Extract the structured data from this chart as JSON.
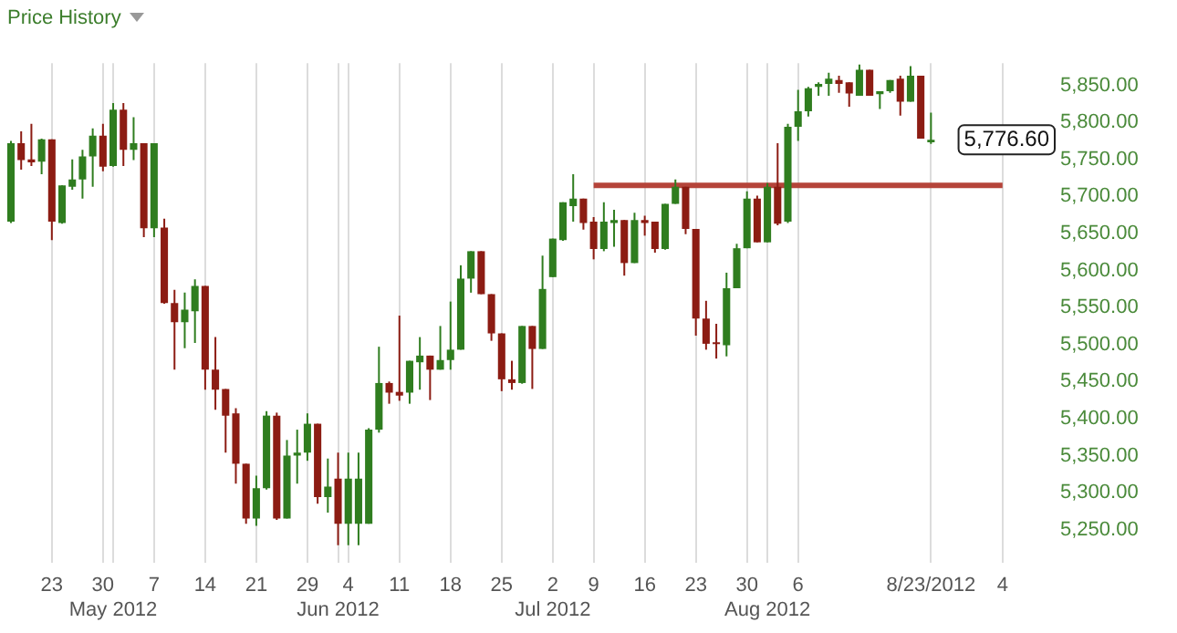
{
  "chart_data": {
    "type": "candlestick",
    "title": "Price History",
    "categories": [
      null,
      null,
      null,
      null,
      "23",
      null,
      null,
      null,
      null,
      "30",
      "\nMay 2012",
      null,
      null,
      null,
      "7",
      null,
      null,
      null,
      null,
      "14",
      null,
      null,
      null,
      null,
      "21",
      null,
      null,
      null,
      null,
      "29",
      null,
      null,
      "\nJun 2012",
      "4",
      null,
      null,
      null,
      null,
      "11",
      null,
      null,
      null,
      null,
      "18",
      null,
      null,
      null,
      null,
      "25",
      null,
      null,
      null,
      null,
      "2\nJul 2012",
      null,
      null,
      null,
      "9",
      null,
      null,
      null,
      null,
      "16",
      null,
      null,
      null,
      null,
      "23",
      null,
      null,
      null,
      null,
      "30",
      null,
      "\nAug 2012",
      null,
      null,
      "6",
      null,
      null,
      null,
      null,
      null,
      null,
      null,
      null,
      null,
      null,
      null,
      null,
      "8/23/2012",
      null,
      null,
      null,
      null,
      null,
      null,
      "4",
      null,
      null,
      null
    ],
    "ohlc": [
      [
        5666,
        5775,
        5664,
        5772
      ],
      [
        5772,
        5788,
        5736,
        5749
      ],
      [
        5750,
        5798,
        5741,
        5746
      ],
      [
        5747,
        5778,
        5730,
        5777
      ],
      [
        5777,
        5777,
        5641,
        5666
      ],
      [
        5664,
        5715,
        5663,
        5715
      ],
      [
        5713,
        5750,
        5709,
        5723
      ],
      [
        5723,
        5763,
        5697,
        5754
      ],
      [
        5754,
        5792,
        5713,
        5782
      ],
      [
        5782,
        5798,
        5734,
        5740
      ],
      [
        5741,
        5826,
        5740,
        5817
      ],
      [
        5817,
        5826,
        5741,
        5763
      ],
      [
        5763,
        5807,
        5749,
        5772
      ],
      [
        5772,
        5772,
        5645,
        5657
      ],
      [
        5657,
        5772,
        5645,
        5772
      ],
      [
        5658,
        5670,
        5555,
        5556
      ],
      [
        5556,
        5574,
        5466,
        5530
      ],
      [
        5530,
        5570,
        5495,
        5547
      ],
      [
        5545,
        5588,
        5502,
        5579
      ],
      [
        5579,
        5579,
        5439,
        5466
      ],
      [
        5466,
        5510,
        5412,
        5439
      ],
      [
        5440,
        5440,
        5354,
        5404
      ],
      [
        5407,
        5414,
        5312,
        5339
      ],
      [
        5339,
        5339,
        5258,
        5265
      ],
      [
        5265,
        5323,
        5255,
        5306
      ],
      [
        5306,
        5410,
        5304,
        5404
      ],
      [
        5404,
        5408,
        5263,
        5265
      ],
      [
        5265,
        5371,
        5265,
        5350
      ],
      [
        5350,
        5385,
        5312,
        5354
      ],
      [
        5354,
        5407,
        5343,
        5393
      ],
      [
        5393,
        5393,
        5285,
        5294
      ],
      [
        5294,
        5346,
        5273,
        5308
      ],
      [
        5319,
        5354,
        5229,
        5258
      ],
      [
        5258,
        5354,
        5229,
        5319
      ],
      [
        5258,
        5354,
        5229,
        5319
      ],
      [
        5258,
        5387,
        5258,
        5385
      ],
      [
        5385,
        5497,
        5381,
        5448
      ],
      [
        5448,
        5450,
        5420,
        5435
      ],
      [
        5436,
        5539,
        5424,
        5431
      ],
      [
        5435,
        5478,
        5420,
        5478
      ],
      [
        5476,
        5510,
        5439,
        5485
      ],
      [
        5485,
        5485,
        5425,
        5466
      ],
      [
        5466,
        5525,
        5466,
        5479
      ],
      [
        5479,
        5558,
        5466,
        5493
      ],
      [
        5493,
        5607,
        5493,
        5589
      ],
      [
        5589,
        5626,
        5570,
        5626
      ],
      [
        5626,
        5626,
        5568,
        5568
      ],
      [
        5568,
        5568,
        5505,
        5515
      ],
      [
        5515,
        5515,
        5437,
        5453
      ],
      [
        5453,
        5478,
        5439,
        5448
      ],
      [
        5448,
        5525,
        5447,
        5525
      ],
      [
        5525,
        5525,
        5440,
        5494
      ],
      [
        5494,
        5620,
        5494,
        5575
      ],
      [
        5591,
        5643,
        5591,
        5643
      ],
      [
        5641,
        5692,
        5640,
        5692
      ],
      [
        5687,
        5730,
        5666,
        5697
      ],
      [
        5697,
        5697,
        5655,
        5664
      ],
      [
        5666,
        5672,
        5615,
        5629
      ],
      [
        5629,
        5692,
        5626,
        5666
      ],
      [
        5664,
        5682,
        5632,
        5668
      ],
      [
        5668,
        5668,
        5593,
        5610
      ],
      [
        5610,
        5678,
        5610,
        5668
      ],
      [
        5668,
        5674,
        5647,
        5664
      ],
      [
        5666,
        5666,
        5624,
        5629
      ],
      [
        5629,
        5690,
        5628,
        5690
      ],
      [
        5690,
        5723,
        5690,
        5713
      ],
      [
        5713,
        5713,
        5649,
        5656
      ],
      [
        5656,
        5656,
        5512,
        5535
      ],
      [
        5535,
        5559,
        5493,
        5501
      ],
      [
        5503,
        5528,
        5481,
        5501
      ],
      [
        5499,
        5597,
        5484,
        5576
      ],
      [
        5576,
        5636,
        5576,
        5630
      ],
      [
        5630,
        5707,
        5630,
        5697
      ],
      [
        5697,
        5701,
        5638,
        5638
      ],
      [
        5638,
        5718,
        5638,
        5713
      ],
      [
        5713,
        5772,
        5661,
        5663
      ],
      [
        5666,
        5798,
        5664,
        5794
      ],
      [
        5794,
        5844,
        5775,
        5815
      ],
      [
        5815,
        5848,
        5808,
        5846
      ],
      [
        5848,
        5854,
        5836,
        5852
      ],
      [
        5852,
        5867,
        5836,
        5859
      ],
      [
        5857,
        5863,
        5840,
        5852
      ],
      [
        5854,
        5854,
        5821,
        5839
      ],
      [
        5836,
        5878,
        5836,
        5871
      ],
      [
        5871,
        5871,
        5836,
        5836
      ],
      [
        5838,
        5842,
        5818,
        5842
      ],
      [
        5842,
        5857,
        5840,
        5857
      ],
      [
        5859,
        5863,
        5809,
        5828
      ],
      [
        5828,
        5876,
        5828,
        5863
      ],
      [
        5863,
        5863,
        5778,
        5778
      ],
      [
        5773,
        5813,
        5771,
        5776.6
      ],
      null,
      null,
      null,
      null,
      null,
      null,
      null,
      null,
      null,
      null
    ],
    "colors": [
      "#2f7d1f",
      "#8c1c13",
      "#8c1c13",
      "#2f7d1f",
      "#8c1c13",
      "#2f7d1f",
      "#2f7d1f",
      "#2f7d1f",
      "#2f7d1f",
      "#8c1c13",
      "#2f7d1f",
      "#8c1c13",
      "#2f7d1f",
      "#8c1c13",
      "#2f7d1f",
      "#8c1c13",
      "#8c1c13",
      "#2f7d1f",
      "#2f7d1f",
      "#8c1c13",
      "#8c1c13",
      "#8c1c13",
      "#8c1c13",
      "#8c1c13",
      "#2f7d1f",
      "#2f7d1f",
      "#8c1c13",
      "#2f7d1f",
      "#2f7d1f",
      "#2f7d1f",
      "#8c1c13",
      "#2f7d1f",
      "#8c1c13",
      "#2f7d1f",
      "#2f7d1f",
      "#2f7d1f",
      "#2f7d1f",
      "#8c1c13",
      "#8c1c13",
      "#2f7d1f",
      "#2f7d1f",
      "#8c1c13",
      "#2f7d1f",
      "#2f7d1f",
      "#2f7d1f",
      "#2f7d1f",
      "#8c1c13",
      "#8c1c13",
      "#8c1c13",
      "#8c1c13",
      "#2f7d1f",
      "#8c1c13",
      "#2f7d1f",
      "#2f7d1f",
      "#2f7d1f",
      "#2f7d1f",
      "#8c1c13",
      "#8c1c13",
      "#2f7d1f",
      "#2f7d1f",
      "#8c1c13",
      "#2f7d1f",
      "#8c1c13",
      "#8c1c13",
      "#2f7d1f",
      "#2f7d1f",
      "#8c1c13",
      "#8c1c13",
      "#8c1c13",
      "#8c1c13",
      "#2f7d1f",
      "#2f7d1f",
      "#2f7d1f",
      "#8c1c13",
      "#2f7d1f",
      "#8c1c13",
      "#2f7d1f",
      "#2f7d1f",
      "#2f7d1f",
      "#2f7d1f",
      "#2f7d1f",
      "#8c1c13",
      "#8c1c13",
      "#2f7d1f",
      "#8c1c13",
      "#2f7d1f",
      "#2f7d1f",
      "#8c1c13",
      "#2f7d1f",
      "#8c1c13",
      "#2f7d1f",
      null,
      null,
      null,
      null,
      null,
      null,
      null,
      null,
      null,
      null
    ],
    "series": [
      {
        "type": "line",
        "color": "#b5443a",
        "values": [
          null,
          null,
          null,
          null,
          null,
          null,
          null,
          null,
          null,
          null,
          null,
          null,
          null,
          null,
          null,
          null,
          null,
          null,
          null,
          null,
          null,
          null,
          null,
          null,
          null,
          null,
          null,
          null,
          null,
          null,
          null,
          null,
          null,
          null,
          null,
          null,
          null,
          null,
          null,
          null,
          null,
          null,
          null,
          null,
          null,
          null,
          null,
          null,
          null,
          null,
          null,
          null,
          null,
          null,
          null,
          null,
          null,
          5715,
          5715,
          5715,
          5715,
          5715,
          5715,
          5715,
          5715,
          5715,
          5715,
          5715,
          5715,
          5715,
          5715,
          5715,
          5715,
          5715,
          5715,
          5715,
          5715,
          5715,
          5715,
          5715,
          5715,
          5715,
          5715,
          5715,
          5715,
          5715,
          5715,
          5715,
          5715,
          5715,
          5715,
          5715,
          5715,
          5715,
          5715,
          5715,
          5715,
          5715,
          null,
          null,
          null
        ]
      }
    ],
    "ylim": [
      5205,
      5880
    ],
    "yticks": [
      {
        "value": 5250,
        "label": "5,250.00"
      },
      {
        "value": 5300,
        "label": "5,300.00"
      },
      {
        "value": 5350,
        "label": "5,350.00"
      },
      {
        "value": 5400,
        "label": "5,400.00"
      },
      {
        "value": 5450,
        "label": "5,450.00"
      },
      {
        "value": 5500,
        "label": "5,500.00"
      },
      {
        "value": 5550,
        "label": "5,550.00"
      },
      {
        "value": 5600,
        "label": "5,600.00"
      },
      {
        "value": 5650,
        "label": "5,650.00"
      },
      {
        "value": 5700,
        "label": "5,700.00"
      },
      {
        "value": 5750,
        "label": "5,750.00"
      },
      {
        "value": 5800,
        "label": "5,800.00"
      },
      {
        "value": 5850,
        "label": "5,850.00"
      }
    ],
    "grid": "x",
    "marker": "none",
    "annotations": [
      "5,776.60"
    ]
  }
}
